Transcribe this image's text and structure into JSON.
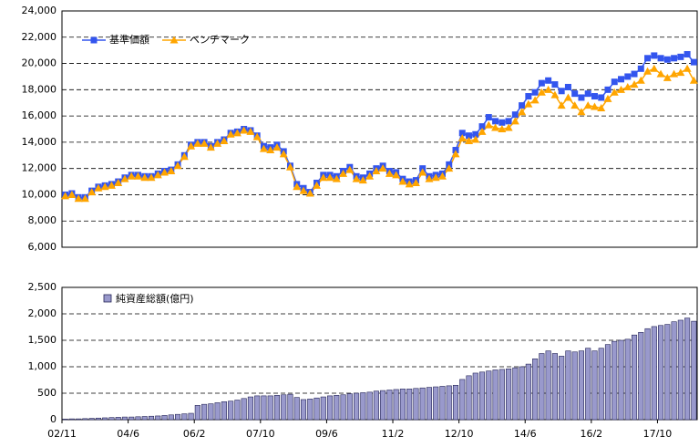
{
  "chart_data": [
    {
      "type": "line",
      "series": [
        {
          "name": "基準価額",
          "color": "#3355ee",
          "marker": "square",
          "values": [
            10000,
            10100,
            9800,
            9800,
            10300,
            10600,
            10700,
            10800,
            11000,
            11300,
            11500,
            11500,
            11400,
            11400,
            11600,
            11800,
            11900,
            12300,
            13000,
            13800,
            14000,
            14000,
            13700,
            14000,
            14200,
            14700,
            14800,
            15000,
            14900,
            14500,
            13700,
            13600,
            13800,
            13300,
            12200,
            10800,
            10500,
            10200,
            10900,
            11500,
            11500,
            11400,
            11800,
            12100,
            11400,
            11300,
            11600,
            12000,
            12200,
            11800,
            11700,
            11200,
            11000,
            11100,
            12000,
            11400,
            11500,
            11600,
            12300,
            13400,
            14700,
            14500,
            14600,
            15200,
            15900,
            15600,
            15500,
            15600,
            16100,
            16800,
            17500,
            17800,
            18500,
            18700,
            18400,
            17900,
            18200,
            17700,
            17400,
            17700,
            17500,
            17400,
            18000,
            18600,
            18800,
            19000,
            19200,
            19600,
            20400,
            20600,
            20400,
            20300,
            20400,
            20500,
            20700,
            20100
          ]
        },
        {
          "name": "ベンチマーク",
          "color": "#ffa500",
          "marker": "triangle",
          "values": [
            9900,
            10000,
            9700,
            9700,
            10200,
            10500,
            10600,
            10700,
            10900,
            11200,
            11400,
            11400,
            11300,
            11300,
            11500,
            11700,
            11800,
            12200,
            12900,
            13700,
            13900,
            13900,
            13600,
            13900,
            14100,
            14600,
            14700,
            14900,
            14800,
            14400,
            13500,
            13400,
            13600,
            13100,
            12100,
            10600,
            10300,
            10100,
            10700,
            11300,
            11300,
            11200,
            11600,
            11900,
            11200,
            11100,
            11400,
            11800,
            12000,
            11600,
            11500,
            11000,
            10800,
            10900,
            11700,
            11200,
            11300,
            11400,
            12000,
            13100,
            14300,
            14100,
            14200,
            14800,
            15300,
            15100,
            15000,
            15100,
            15600,
            16300,
            16900,
            17200,
            17800,
            18000,
            17600,
            16800,
            17400,
            16800,
            16300,
            16800,
            16700,
            16600,
            17300,
            17800,
            18000,
            18200,
            18400,
            18700,
            19400,
            19600,
            19200,
            18900,
            19200,
            19300,
            19600,
            18700
          ]
        }
      ],
      "ylim": [
        6000,
        24000
      ],
      "yticks": [
        {
          "value": 6000,
          "label": "6,000"
        },
        {
          "value": 8000,
          "label": "8,000"
        },
        {
          "value": 10000,
          "label": "10,000"
        },
        {
          "value": 12000,
          "label": "12,000"
        },
        {
          "value": 14000,
          "label": "14,000"
        },
        {
          "value": 16000,
          "label": "16,000"
        },
        {
          "value": 18000,
          "label": "18,000"
        },
        {
          "value": 20000,
          "label": "20,000"
        },
        {
          "value": 22000,
          "label": "22,000"
        },
        {
          "value": 24000,
          "label": "24,000"
        }
      ],
      "grid": true,
      "legend": "top-left"
    },
    {
      "type": "bar",
      "categories": [
        "02/11",
        null,
        null,
        null,
        null,
        null,
        null,
        null,
        null,
        null,
        "04/6",
        null,
        null,
        null,
        null,
        null,
        null,
        null,
        null,
        null,
        "06/2",
        null,
        null,
        null,
        null,
        null,
        null,
        null,
        null,
        null,
        "07/10",
        null,
        null,
        null,
        null,
        null,
        null,
        null,
        null,
        null,
        "09/6",
        null,
        null,
        null,
        null,
        null,
        null,
        null,
        null,
        null,
        "11/2",
        null,
        null,
        null,
        null,
        null,
        null,
        null,
        null,
        null,
        "12/10",
        null,
        null,
        null,
        null,
        null,
        null,
        null,
        null,
        null,
        "14/6",
        null,
        null,
        null,
        null,
        null,
        null,
        null,
        null,
        null,
        "16/2",
        null,
        null,
        null,
        null,
        null,
        null,
        null,
        null,
        null,
        "17/10",
        null,
        null,
        null,
        null,
        null
      ],
      "series": [
        {
          "name": "純資産総額(億円)",
          "color": "#9999cc",
          "values": [
            10,
            15,
            15,
            20,
            25,
            30,
            35,
            40,
            45,
            50,
            50,
            55,
            60,
            65,
            70,
            80,
            90,
            100,
            110,
            120,
            270,
            290,
            300,
            320,
            340,
            350,
            370,
            400,
            430,
            450,
            450,
            450,
            460,
            470,
            480,
            420,
            380,
            390,
            410,
            430,
            450,
            460,
            470,
            490,
            500,
            510,
            520,
            540,
            550,
            560,
            570,
            580,
            580,
            590,
            600,
            610,
            620,
            630,
            640,
            650,
            760,
            830,
            880,
            900,
            920,
            940,
            950,
            960,
            980,
            1000,
            1050,
            1150,
            1250,
            1300,
            1250,
            1200,
            1300,
            1280,
            1300,
            1350,
            1300,
            1350,
            1420,
            1480,
            1500,
            1520,
            1600,
            1650,
            1720,
            1760,
            1780,
            1800,
            1850,
            1880,
            1920,
            1860
          ]
        }
      ],
      "ylim": [
        0,
        2500
      ],
      "yticks": [
        0,
        500,
        {
          "value": 1000,
          "label": "1,000"
        },
        {
          "value": 1500,
          "label": "1,500"
        },
        {
          "value": 2000,
          "label": "2,000"
        },
        {
          "value": 2500,
          "label": "2,500"
        }
      ],
      "grid": true,
      "legend": "top-left"
    }
  ]
}
